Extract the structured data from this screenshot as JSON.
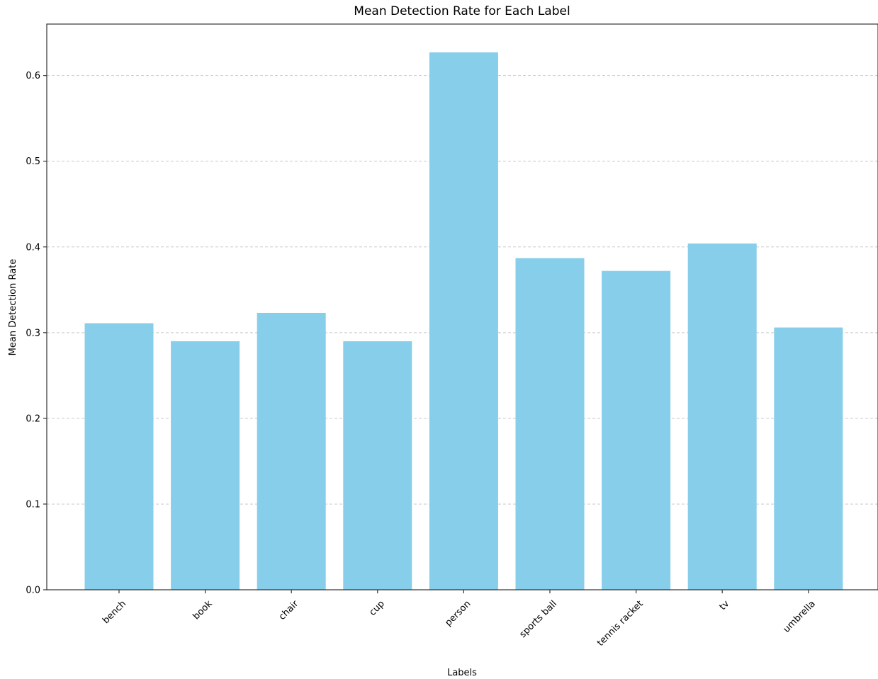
{
  "chart_data": {
    "type": "bar",
    "title": "Mean Detection Rate for Each Label",
    "xlabel": "Labels",
    "ylabel": "Mean Detection Rate",
    "categories": [
      "bench",
      "book",
      "chair",
      "cup",
      "person",
      "sports ball",
      "tennis racket",
      "tv",
      "umbrella"
    ],
    "values": [
      0.311,
      0.29,
      0.323,
      0.29,
      0.627,
      0.387,
      0.372,
      0.404,
      0.306
    ],
    "ylim": [
      0,
      0.66
    ],
    "yticks": [
      0.0,
      0.1,
      0.2,
      0.3,
      0.4,
      0.5,
      0.6
    ],
    "ytick_labels": [
      "0.0",
      "0.1",
      "0.2",
      "0.3",
      "0.4",
      "0.5",
      "0.6"
    ],
    "grid": "y-dashed",
    "bar_color": "#87CEEB",
    "xtick_rotation": 45
  }
}
